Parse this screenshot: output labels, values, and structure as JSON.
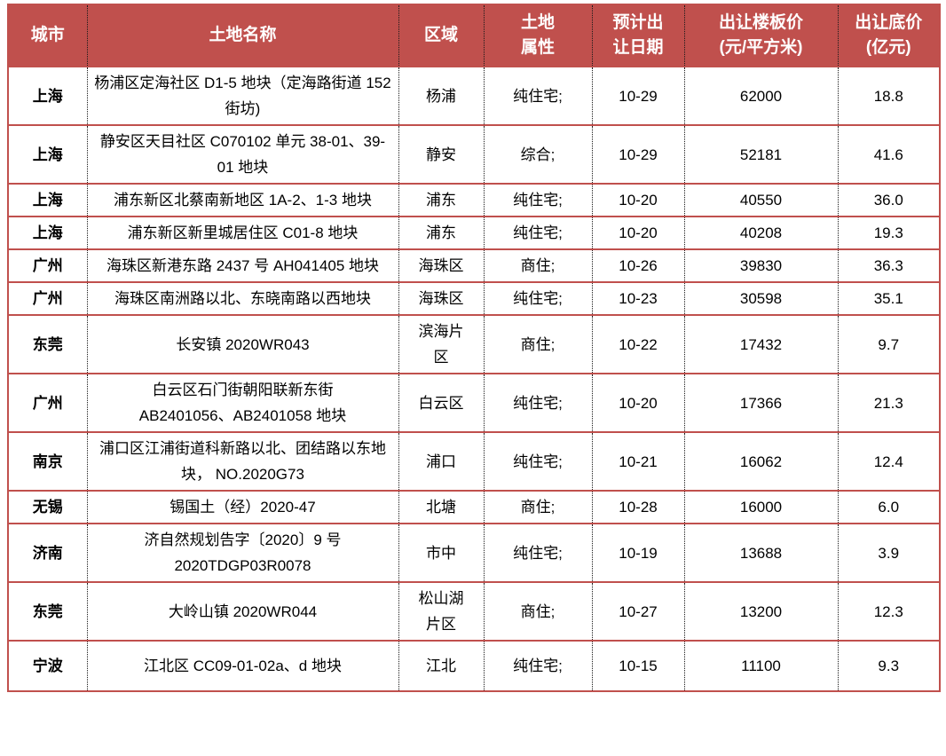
{
  "colors": {
    "header_bg": "#C0504D",
    "header_text": "#FFFFFF",
    "row_border": "#C0504D",
    "column_border_dotted": "#1A1A1A",
    "body_text": "#000000"
  },
  "table": {
    "columns": [
      {
        "key": "city",
        "label": "城市"
      },
      {
        "key": "land-name",
        "label": "土地名称"
      },
      {
        "key": "district",
        "label": "区域"
      },
      {
        "key": "attribute",
        "label": "土地\n属性"
      },
      {
        "key": "date",
        "label": "预计出\n让日期"
      },
      {
        "key": "floor-price",
        "label": "出让楼板价\n(元/平方米)"
      },
      {
        "key": "reserve-price",
        "label": "出让底价\n(亿元)"
      }
    ],
    "rows": [
      [
        "上海",
        "杨浦区定海社区 D1-5 地块（定海路街道 152 街坊)",
        "杨浦",
        "纯住宅;",
        "10-29",
        "62000",
        "18.8"
      ],
      [
        "上海",
        "静安区天目社区 C070102 单元 38-01、39-01 地块",
        "静安",
        "综合;",
        "10-29",
        "52181",
        "41.6"
      ],
      [
        "上海",
        "浦东新区北蔡南新地区 1A-2、1-3 地块",
        "浦东",
        "纯住宅;",
        "10-20",
        "40550",
        "36.0"
      ],
      [
        "上海",
        "浦东新区新里城居住区 C01-8 地块",
        "浦东",
        "纯住宅;",
        "10-20",
        "40208",
        "19.3"
      ],
      [
        "广州",
        "海珠区新港东路 2437 号 AH041405 地块",
        "海珠区",
        "商住;",
        "10-26",
        "39830",
        "36.3"
      ],
      [
        "广州",
        "海珠区南洲路以北、东晓南路以西地块",
        "海珠区",
        "纯住宅;",
        "10-23",
        "30598",
        "35.1"
      ],
      [
        "东莞",
        "长安镇 2020WR043",
        "滨海片\n区",
        "商住;",
        "10-22",
        "17432",
        "9.7"
      ],
      [
        "广州",
        "白云区石门街朝阳联新东街\nAB2401056、AB2401058 地块",
        "白云区",
        "纯住宅;",
        "10-20",
        "17366",
        "21.3"
      ],
      [
        "南京",
        "浦口区江浦街道科新路以北、团结路以东地块， NO.2020G73",
        "浦口",
        "纯住宅;",
        "10-21",
        "16062",
        "12.4"
      ],
      [
        "无锡",
        "锡国土（经）2020-47",
        "北塘",
        "商住;",
        "10-28",
        "16000",
        "6.0"
      ],
      [
        "济南",
        "济自然规划告字〔2020〕9 号\n2020TDGP03R0078",
        "市中",
        "纯住宅;",
        "10-19",
        "13688",
        "3.9"
      ],
      [
        "东莞",
        "大岭山镇 2020WR044",
        "松山湖\n片区",
        "商住;",
        "10-27",
        "13200",
        "12.3"
      ],
      [
        "宁波",
        "江北区 CC09-01-02a、d 地块",
        "江北",
        "纯住宅;",
        "10-15",
        "11100",
        "9.3"
      ]
    ]
  }
}
